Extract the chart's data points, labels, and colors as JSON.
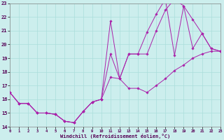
{
  "xlabel": "Windchill (Refroidissement éolien,°C)",
  "xlim": [
    0,
    23
  ],
  "ylim": [
    14,
    23
  ],
  "ytick_vals": [
    14,
    15,
    16,
    17,
    18,
    19,
    20,
    21,
    22,
    23
  ],
  "xtick_vals": [
    0,
    1,
    2,
    3,
    4,
    5,
    6,
    7,
    8,
    9,
    10,
    11,
    12,
    13,
    14,
    15,
    16,
    17,
    18,
    19,
    20,
    21,
    22,
    23
  ],
  "background_color": "#cceeed",
  "grid_color": "#aadddb",
  "line_color": "#aa22aa",
  "line1_y": [
    16.5,
    15.7,
    15.7,
    15.0,
    15.0,
    14.9,
    14.4,
    14.3,
    15.1,
    15.8,
    16.0,
    21.7,
    17.5,
    19.3,
    19.3,
    20.9,
    22.2,
    23.3,
    19.2,
    22.8,
    21.8,
    20.8,
    19.7,
    19.5
  ],
  "line2_y": [
    16.5,
    15.7,
    15.7,
    15.0,
    15.0,
    14.9,
    14.4,
    14.3,
    15.1,
    15.8,
    16.0,
    19.3,
    17.5,
    19.3,
    19.3,
    19.3,
    21.0,
    22.5,
    23.3,
    22.8,
    19.7,
    20.8,
    19.7,
    19.5
  ],
  "line3_y": [
    16.5,
    15.7,
    15.7,
    15.0,
    15.0,
    14.9,
    14.4,
    14.3,
    15.1,
    15.8,
    16.0,
    17.6,
    17.5,
    16.8,
    16.8,
    16.5,
    17.0,
    17.5,
    18.1,
    18.5,
    19.0,
    19.3,
    19.5,
    19.5
  ],
  "marker": "D",
  "markersize": 1.8,
  "linewidth": 0.7,
  "tick_fontsize": 5.0,
  "xlabel_fontsize": 5.0
}
